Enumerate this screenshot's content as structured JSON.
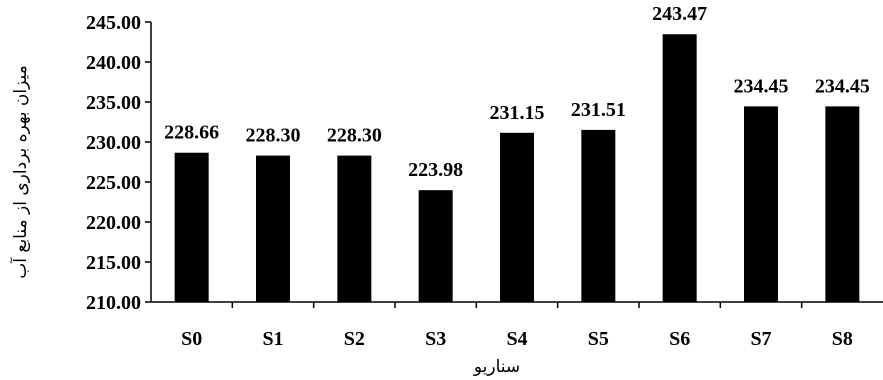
{
  "chart_data": {
    "type": "bar",
    "title": "",
    "xlabel": "سناریو",
    "ylabel": "میزان بهره برداری از منابع آب",
    "categories": [
      "S0",
      "S1",
      "S2",
      "S3",
      "S4",
      "S5",
      "S6",
      "S7",
      "S8"
    ],
    "values": [
      228.66,
      228.3,
      228.3,
      223.98,
      231.15,
      231.51,
      243.47,
      234.45,
      234.45
    ],
    "value_labels": [
      "228.66",
      "228.30",
      "228.30",
      "223.98",
      "231.15",
      "231.51",
      "243.47",
      "234.45",
      "234.45"
    ],
    "ylim": [
      210,
      245
    ],
    "yticks": [
      210,
      215,
      220,
      225,
      230,
      235,
      240,
      245
    ],
    "ytick_labels": [
      "210.00",
      "215.00",
      "220.00",
      "225.00",
      "230.00",
      "235.00",
      "240.00",
      "245.00"
    ],
    "grid": false,
    "legend": "none",
    "bar_color": "#000000"
  }
}
